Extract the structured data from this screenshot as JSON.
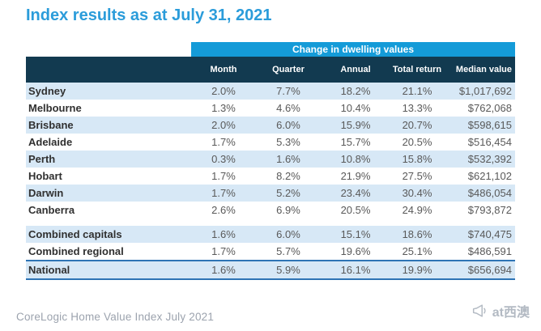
{
  "title": "Index results as at July 31, 2021",
  "table": {
    "band_label": "Change in dwelling values",
    "columns": [
      {
        "key": "month",
        "label": "Month"
      },
      {
        "key": "quarter",
        "label": "Quarter"
      },
      {
        "key": "annual",
        "label": "Annual"
      },
      {
        "key": "total_return",
        "label": "Total return"
      },
      {
        "key": "median_value",
        "label": "Median value"
      }
    ],
    "rows": [
      {
        "name": "Sydney",
        "month": "2.0%",
        "quarter": "7.7%",
        "annual": "18.2%",
        "total_return": "21.1%",
        "median_value": "$1,017,692"
      },
      {
        "name": "Melbourne",
        "month": "1.3%",
        "quarter": "4.6%",
        "annual": "10.4%",
        "total_return": "13.3%",
        "median_value": "$762,068"
      },
      {
        "name": "Brisbane",
        "month": "2.0%",
        "quarter": "6.0%",
        "annual": "15.9%",
        "total_return": "20.7%",
        "median_value": "$598,615"
      },
      {
        "name": "Adelaide",
        "month": "1.7%",
        "quarter": "5.3%",
        "annual": "15.7%",
        "total_return": "20.5%",
        "median_value": "$516,454"
      },
      {
        "name": "Perth",
        "month": "0.3%",
        "quarter": "1.6%",
        "annual": "10.8%",
        "total_return": "15.8%",
        "median_value": "$532,392"
      },
      {
        "name": "Hobart",
        "month": "1.7%",
        "quarter": "8.2%",
        "annual": "21.9%",
        "total_return": "27.5%",
        "median_value": "$621,102"
      },
      {
        "name": "Darwin",
        "month": "1.7%",
        "quarter": "5.2%",
        "annual": "23.4%",
        "total_return": "30.4%",
        "median_value": "$486,054"
      },
      {
        "name": "Canberra",
        "month": "2.6%",
        "quarter": "6.9%",
        "annual": "20.5%",
        "total_return": "24.9%",
        "median_value": "$793,872"
      }
    ],
    "aggregate_rows": [
      {
        "name": "Combined capitals",
        "month": "1.6%",
        "quarter": "6.0%",
        "annual": "15.1%",
        "total_return": "18.6%",
        "median_value": "$740,475"
      },
      {
        "name": "Combined regional",
        "month": "1.7%",
        "quarter": "5.7%",
        "annual": "19.6%",
        "total_return": "25.1%",
        "median_value": "$486,591"
      }
    ],
    "national_row": {
      "name": "National",
      "month": "1.6%",
      "quarter": "5.9%",
      "annual": "16.1%",
      "total_return": "19.9%",
      "median_value": "$656,694"
    }
  },
  "footer": {
    "source": "CoreLogic Home Value Index July 2021"
  },
  "watermark": {
    "label": "at西澳",
    "icon": "megaphone-icon"
  },
  "colors": {
    "title_blue": "#2B9CDA",
    "band_blue": "#149BD8",
    "header_navy": "#123A50",
    "row_stripe_blue": "#D7E8F6",
    "national_border_blue": "#2E74B5",
    "value_text_gray": "#595959",
    "caption_gray": "#9CA3AE"
  }
}
